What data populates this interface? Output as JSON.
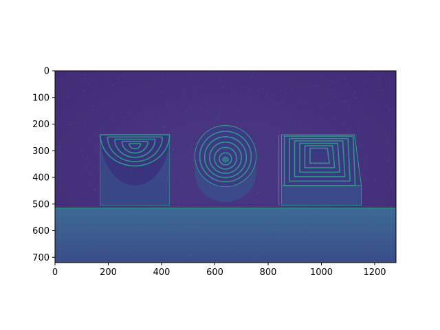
{
  "chart_data": {
    "type": "heatmap",
    "title": "",
    "xlabel": "",
    "ylabel": "",
    "image_size": [
      1280,
      720
    ],
    "xlim": [
      0,
      1280
    ],
    "ylim": [
      720,
      0
    ],
    "x_ticks": [
      0,
      200,
      400,
      600,
      800,
      1000,
      1200
    ],
    "y_ticks": [
      0,
      100,
      200,
      300,
      400,
      500,
      600,
      700
    ],
    "x_tick_labels": [
      "0",
      "200",
      "400",
      "600",
      "800",
      "1000",
      "1200"
    ],
    "y_tick_labels": [
      "0",
      "100",
      "200",
      "300",
      "400",
      "500",
      "600",
      "700"
    ],
    "colormap": "viridis",
    "background_color": "#46307a",
    "floor_color": "#3b5a8c",
    "edge_color": "#2fa08a",
    "grid": false,
    "objects": [
      {
        "name": "semicircle-block",
        "shape": "half-disc rings",
        "x_range": [
          170,
          430
        ],
        "y_range": [
          240,
          505
        ]
      },
      {
        "name": "circle-block",
        "shape": "concentric rings",
        "center": [
          640,
          320
        ],
        "radius": 115
      },
      {
        "name": "square-block",
        "shape": "concentric squares",
        "x_range": [
          840,
          1150
        ],
        "y_range": [
          240,
          505
        ]
      }
    ],
    "floor_top_y": 515
  }
}
